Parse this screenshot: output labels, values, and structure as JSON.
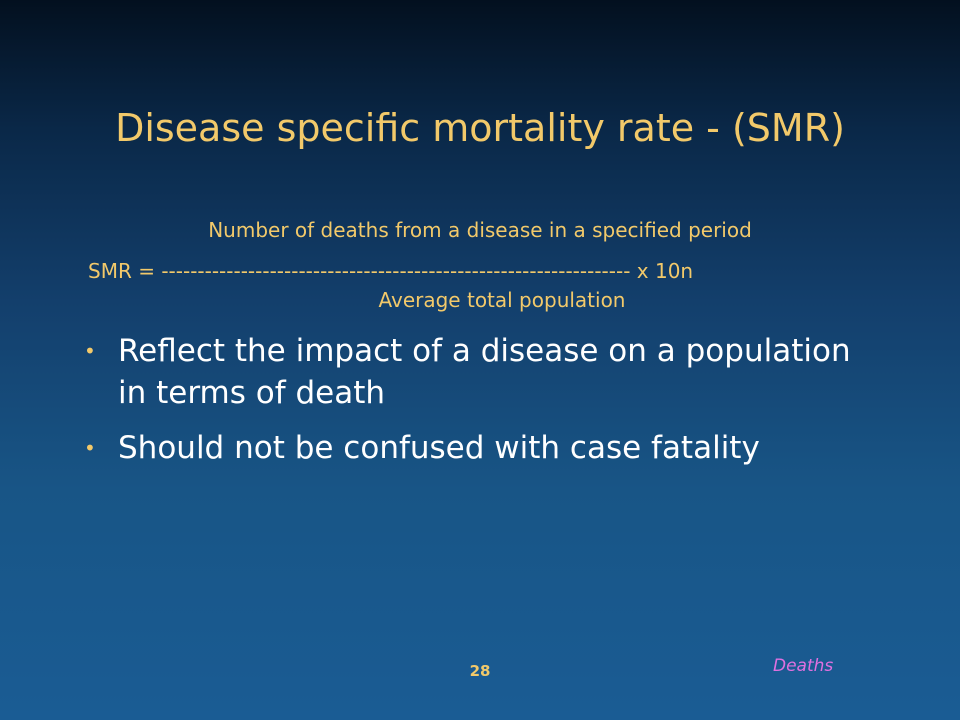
{
  "slide": {
    "title": "Disease specific mortality rate - (SMR)",
    "formula": {
      "numerator": "Number of deaths from a disease in a specified period",
      "fraction_line": "SMR = -----------------------------------------------------------------  x 10n",
      "denominator": "Average total population"
    },
    "bullets": [
      {
        "text": "Reflect the impact of a disease on a population in terms of death"
      },
      {
        "text": "Should not be confused with case fatality"
      }
    ],
    "page_number": "28",
    "section_label": "Deaths"
  },
  "colors": {
    "accent": "#f2c96a",
    "body_text": "#ffffff",
    "section_label": "#e070e0",
    "background_top": "#03101f",
    "background_bottom": "#1a5c94"
  }
}
